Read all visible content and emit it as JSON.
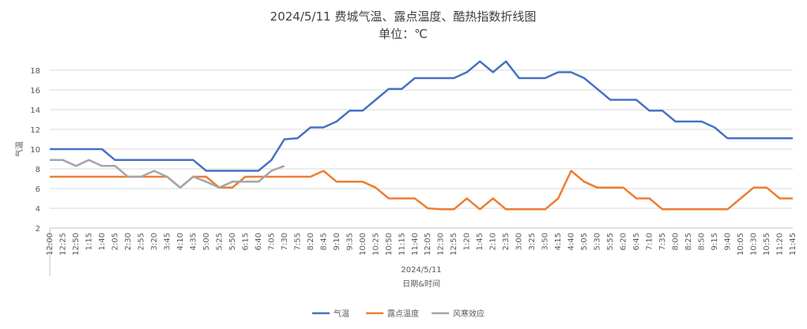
{
  "chart_data": {
    "type": "line",
    "title": "2024/5/11 费城气温、露点温度、酷热指数折线图",
    "subtitle": "单位：℃",
    "y_label": "气温",
    "x_label": "日期&时间",
    "x_group": "2024/5/11",
    "categories": [
      "12:00",
      "12:25",
      "12:50",
      "1:15",
      "1:40",
      "2:05",
      "2:30",
      "2:55",
      "3:20",
      "3:45",
      "4:10",
      "4:35",
      "5:00",
      "5:25",
      "5:50",
      "6:15",
      "6:40",
      "7:05",
      "7:30",
      "7:55",
      "8:20",
      "8:45",
      "9:10",
      "9:35",
      "10:00",
      "10:25",
      "10:50",
      "11:15",
      "11:40",
      "12:05",
      "12:30",
      "12:55",
      "1:20",
      "1:45",
      "2:10",
      "2:35",
      "3:00",
      "3:25",
      "3:50",
      "4:15",
      "4:40",
      "5:05",
      "5:30",
      "5:55",
      "6:20",
      "6:45",
      "7:10",
      "7:35",
      "8:00",
      "8:25",
      "8:50",
      "9:15",
      "9:40",
      "10:05",
      "10:30",
      "10:55",
      "11:20",
      "11:45"
    ],
    "series": [
      {
        "name": "气温",
        "color": "#4472c4",
        "values": [
          10,
          10,
          10,
          10,
          10,
          8.9,
          8.9,
          8.9,
          8.9,
          8.9,
          8.9,
          8.9,
          7.8,
          7.8,
          7.8,
          7.8,
          7.8,
          8.9,
          11,
          11.1,
          12.2,
          12.2,
          12.8,
          13.9,
          13.9,
          15,
          16.1,
          16.1,
          17.2,
          17.2,
          17.2,
          17.2,
          17.8,
          18.9,
          17.8,
          18.9,
          17.2,
          17.2,
          17.2,
          17.8,
          17.8,
          17.2,
          16.1,
          15,
          15,
          15,
          13.9,
          13.9,
          12.8,
          12.8,
          12.8,
          12.2,
          11.1,
          11.1,
          11.1,
          11.1,
          11.1,
          11.1
        ]
      },
      {
        "name": "露点温度",
        "color": "#ed7d31",
        "values": [
          7.2,
          7.2,
          7.2,
          7.2,
          7.2,
          7.2,
          7.2,
          7.2,
          7.2,
          7.2,
          6.1,
          7.2,
          7.2,
          6.1,
          6.1,
          7.2,
          7.2,
          7.2,
          7.2,
          7.2,
          7.2,
          7.8,
          6.7,
          6.7,
          6.7,
          6.1,
          5,
          5,
          5,
          4,
          3.9,
          3.9,
          5,
          3.9,
          5,
          3.9,
          3.9,
          3.9,
          3.9,
          5,
          7.8,
          6.7,
          6.1,
          6.1,
          6.1,
          5,
          5,
          3.9,
          3.9,
          3.9,
          3.9,
          3.9,
          3.9,
          5,
          6.1,
          6.1,
          5,
          5
        ]
      },
      {
        "name": "风寒效应",
        "color": "#a5a5a5",
        "values": [
          8.9,
          8.9,
          8.3,
          8.9,
          8.3,
          8.3,
          7.2,
          7.2,
          7.8,
          7.2,
          6.1,
          7.2,
          6.7,
          6.1,
          6.7,
          6.7,
          6.7,
          7.8,
          8.3,
          null,
          null,
          null,
          null,
          null,
          null,
          null,
          null,
          null,
          null,
          null,
          null,
          null,
          null,
          null,
          null,
          null,
          null,
          null,
          null,
          null,
          null,
          null,
          null,
          null,
          null,
          null,
          null,
          null,
          null,
          null,
          null,
          null,
          null,
          null,
          null,
          null,
          null,
          null
        ]
      }
    ],
    "ylim": [
      2,
      18
    ],
    "yticks": [
      2,
      4,
      6,
      8,
      10,
      12,
      14,
      16,
      18
    ],
    "grid": true,
    "legend": "bottom"
  }
}
